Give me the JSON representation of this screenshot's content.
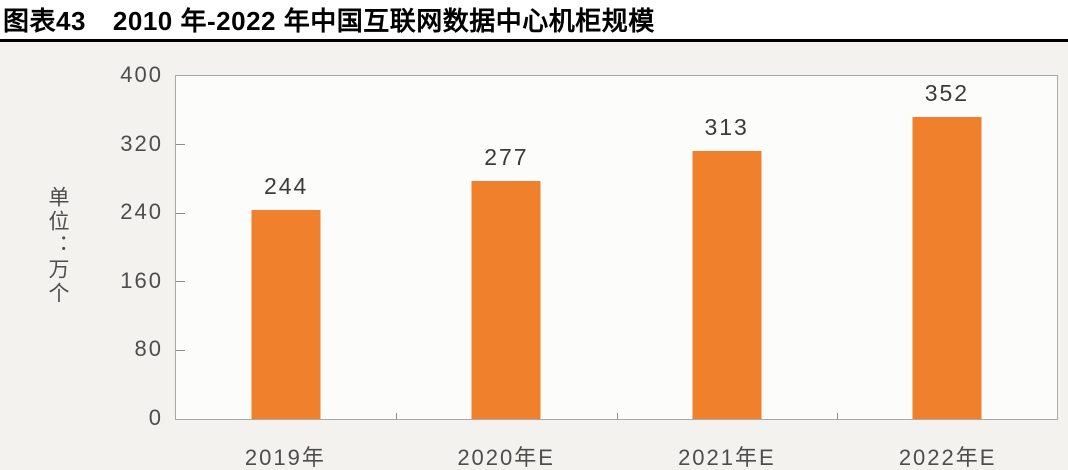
{
  "header": {
    "figure_label": "图表43",
    "title": "2010 年-2022 年中国互联网数据中心机柜规模"
  },
  "chart_data": {
    "type": "bar",
    "title": "2010 年-2022 年中国互联网数据中心机柜规模",
    "categories": [
      "2019年",
      "2020年E",
      "2021年E",
      "2022年E"
    ],
    "values": [
      244,
      277,
      313,
      352
    ],
    "value_labels": true,
    "xlabel": "",
    "ylabel": "单位：万个",
    "ylim": [
      0,
      400
    ],
    "yticks": [
      0,
      80,
      160,
      240,
      320,
      400
    ],
    "grid": false,
    "legend": "none",
    "bar_color": "#F0802B",
    "page_background": "#F3F2EF",
    "plot_background": "#FCFCFB",
    "plot_border_color": "#A8A8A5",
    "axis_text_color": "#4D4D4D",
    "value_label_color": "#3B3B3B"
  }
}
